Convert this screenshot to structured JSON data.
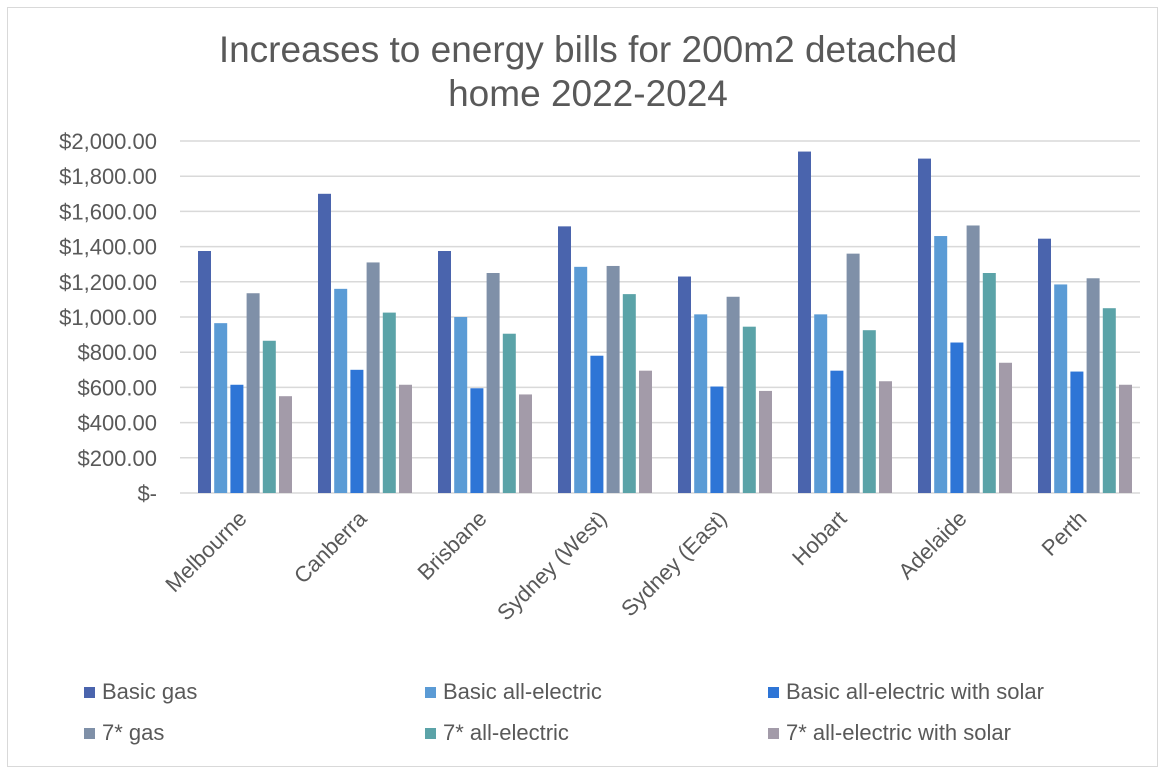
{
  "chart_data": {
    "type": "bar",
    "title": [
      "Increases to energy bills for 200m2 detached",
      "home 2022-2024"
    ],
    "xlabel": "",
    "ylabel": "",
    "ylim": [
      0,
      2000
    ],
    "yticks": [
      0,
      200,
      400,
      600,
      800,
      1000,
      1200,
      1400,
      1600,
      1800,
      2000
    ],
    "ytick_labels": [
      "$-",
      "$200.00",
      "$400.00",
      "$600.00",
      "$800.00",
      "$1,000.00",
      "$1,200.00",
      "$1,400.00",
      "$1,600.00",
      "$1,800.00",
      "$2,000.00"
    ],
    "grid": true,
    "legend_position": "bottom",
    "categories": [
      "Melbourne",
      "Canberra",
      "Brisbane",
      "Sydney (West)",
      "Sydney (East)",
      "Hobart",
      "Adelaide",
      "Perth"
    ],
    "series": [
      {
        "name": "Basic gas",
        "color": "#4a64ad",
        "values": [
          1375,
          1700,
          1375,
          1515,
          1230,
          1940,
          1900,
          1445
        ]
      },
      {
        "name": "Basic all-electric",
        "color": "#5b9bd5",
        "values": [
          965,
          1160,
          1000,
          1285,
          1015,
          1015,
          1460,
          1185
        ]
      },
      {
        "name": "Basic all-electric with solar",
        "color": "#2e75d6",
        "values": [
          615,
          700,
          595,
          780,
          605,
          695,
          855,
          690
        ]
      },
      {
        "name": "7* gas",
        "color": "#7f90a8",
        "values": [
          1135,
          1310,
          1250,
          1290,
          1115,
          1360,
          1520,
          1220
        ]
      },
      {
        "name": "7* all-electric",
        "color": "#5ba3a8",
        "values": [
          865,
          1025,
          905,
          1130,
          945,
          925,
          1250,
          1050
        ]
      },
      {
        "name": "7* all-electric with solar",
        "color": "#a39ba9",
        "values": [
          550,
          615,
          560,
          695,
          580,
          635,
          740,
          615
        ]
      }
    ]
  }
}
